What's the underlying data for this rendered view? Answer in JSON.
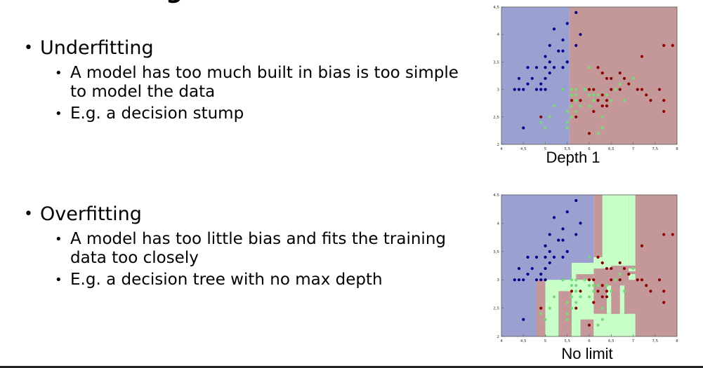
{
  "slide": {
    "title_fragment": "g",
    "bullets": [
      {
        "label": "Underfitting",
        "sub": [
          "A model has too much built in bias is too simple to model the data",
          "E.g. a decision stump"
        ]
      },
      {
        "label": "Overfitting",
        "sub": [
          "A model has too little bias and fits the training data too closely",
          "E.g. a decision tree with no max depth"
        ]
      }
    ]
  },
  "colors": {
    "class0_region": "#9ba0d0",
    "class1_region": "#c8ffc8",
    "class2_region": "#c49898",
    "class0_point": "#00008b",
    "class1_point": "#7bd97b",
    "class2_point": "#8b0000"
  },
  "chart_data": [
    {
      "type": "scatter",
      "title": "Depth 1",
      "xlim": [
        4,
        8
      ],
      "ylim": [
        2,
        4.5
      ],
      "x_ticks": [
        "4",
        "4,5",
        "5",
        "5,5",
        "6",
        "6,5",
        "7",
        "7,5",
        "8"
      ],
      "y_ticks": [
        "2",
        "2,5",
        "3",
        "3,5",
        "4",
        "4,5"
      ],
      "regions": [
        {
          "class": 0,
          "x": [
            4,
            5.55
          ],
          "y": [
            2,
            4.5
          ]
        },
        {
          "class": 2,
          "x": [
            5.55,
            8
          ],
          "y": [
            2,
            4.5
          ]
        }
      ],
      "series": [
        {
          "class": 0,
          "points": [
            [
              4.3,
              3.0
            ],
            [
              4.4,
              3.0
            ],
            [
              4.4,
              3.2
            ],
            [
              4.5,
              2.3
            ],
            [
              4.6,
              3.1
            ],
            [
              4.6,
              3.4
            ],
            [
              4.7,
              3.2
            ],
            [
              4.8,
              3.0
            ],
            [
              4.8,
              3.4
            ],
            [
              4.9,
              3.0
            ],
            [
              4.9,
              3.1
            ],
            [
              5.0,
              3.0
            ],
            [
              5.0,
              3.2
            ],
            [
              5.0,
              3.4
            ],
            [
              5.0,
              3.6
            ],
            [
              5.1,
              3.3
            ],
            [
              5.1,
              3.5
            ],
            [
              5.1,
              3.8
            ],
            [
              5.2,
              3.4
            ],
            [
              5.2,
              4.1
            ],
            [
              5.3,
              3.7
            ],
            [
              5.4,
              3.4
            ],
            [
              5.4,
              3.7
            ],
            [
              5.4,
              3.9
            ],
            [
              5.5,
              4.2
            ],
            [
              5.5,
              3.5
            ],
            [
              5.7,
              4.4
            ],
            [
              5.7,
              3.8
            ],
            [
              5.8,
              4.0
            ],
            [
              5.4,
              3.0
            ],
            [
              5.5,
              3.5
            ],
            [
              4.5,
              3.0
            ]
          ]
        },
        {
          "class": 1,
          "points": [
            [
              4.9,
              2.4
            ],
            [
              5.0,
              2.0
            ],
            [
              5.0,
              2.3
            ],
            [
              5.1,
              2.5
            ],
            [
              5.2,
              2.7
            ],
            [
              5.4,
              3.0
            ],
            [
              5.5,
              2.3
            ],
            [
              5.5,
              2.4
            ],
            [
              5.5,
              2.6
            ],
            [
              5.6,
              2.5
            ],
            [
              5.6,
              2.7
            ],
            [
              5.6,
              2.9
            ],
            [
              5.6,
              3.0
            ],
            [
              5.7,
              2.6
            ],
            [
              5.7,
              2.8
            ],
            [
              5.7,
              2.9
            ],
            [
              5.7,
              3.0
            ],
            [
              5.8,
              2.7
            ],
            [
              5.9,
              3.0
            ],
            [
              6.0,
              2.2
            ],
            [
              6.0,
              2.7
            ],
            [
              6.0,
              2.9
            ],
            [
              6.0,
              3.4
            ],
            [
              6.1,
              2.8
            ],
            [
              6.1,
              3.0
            ],
            [
              6.2,
              2.2
            ],
            [
              6.2,
              2.9
            ],
            [
              6.3,
              2.3
            ],
            [
              6.3,
              3.3
            ],
            [
              6.4,
              2.9
            ],
            [
              6.5,
              2.8
            ],
            [
              6.6,
              3.0
            ],
            [
              6.7,
              3.0
            ],
            [
              6.7,
              3.1
            ],
            [
              6.8,
              2.8
            ],
            [
              6.9,
              3.1
            ],
            [
              7.0,
              3.2
            ],
            [
              5.8,
              2.8
            ],
            [
              6.1,
              2.9
            ],
            [
              6.3,
              2.5
            ]
          ]
        },
        {
          "class": 2,
          "points": [
            [
              4.9,
              2.5
            ],
            [
              5.6,
              2.8
            ],
            [
              5.7,
              2.5
            ],
            [
              5.8,
              2.8
            ],
            [
              6.0,
              2.2
            ],
            [
              6.1,
              3.0
            ],
            [
              6.2,
              2.8
            ],
            [
              6.3,
              2.9
            ],
            [
              6.3,
              3.3
            ],
            [
              6.3,
              2.7
            ],
            [
              6.4,
              2.8
            ],
            [
              6.4,
              3.2
            ],
            [
              6.5,
              3.0
            ],
            [
              6.5,
              3.2
            ],
            [
              6.7,
              3.3
            ],
            [
              6.7,
              3.0
            ],
            [
              6.8,
              3.2
            ],
            [
              6.9,
              3.1
            ],
            [
              7.1,
              3.0
            ],
            [
              7.2,
              3.6
            ],
            [
              7.2,
              3.0
            ],
            [
              7.3,
              2.9
            ],
            [
              7.4,
              2.8
            ],
            [
              7.6,
              3.0
            ],
            [
              7.7,
              3.8
            ],
            [
              7.7,
              2.6
            ],
            [
              7.7,
              2.8
            ],
            [
              7.9,
              3.8
            ],
            [
              6.1,
              2.6
            ],
            [
              6.4,
              2.7
            ],
            [
              6.0,
              3.0
            ],
            [
              6.2,
              3.4
            ]
          ]
        }
      ]
    },
    {
      "type": "scatter",
      "title": "No limit",
      "xlim": [
        4,
        8
      ],
      "ylim": [
        2,
        4.5
      ],
      "x_ticks": [
        "4",
        "4,5",
        "5",
        "5,5",
        "6",
        "6,5",
        "7",
        "7,5",
        "8"
      ],
      "y_ticks": [
        "2",
        "2,5",
        "3",
        "3,5",
        "4",
        "4,5"
      ],
      "regions": [
        {
          "class": 0,
          "x": [
            4,
            5.6
          ],
          "y": [
            2,
            4.5
          ]
        },
        {
          "class": 0,
          "x": [
            5.6,
            6.1
          ],
          "y": [
            3.3,
            4.5
          ]
        },
        {
          "class": 2,
          "x": [
            6.1,
            8
          ],
          "y": [
            2,
            4.5
          ]
        },
        {
          "class": 2,
          "x": [
            4.8,
            5.0
          ],
          "y": [
            2,
            3.0
          ]
        },
        {
          "class": 1,
          "x": [
            5.0,
            5.6
          ],
          "y": [
            2,
            3.0
          ]
        },
        {
          "class": 1,
          "x": [
            5.6,
            6.1
          ],
          "y": [
            2,
            3.3
          ]
        },
        {
          "class": 1,
          "x": [
            6.3,
            6.9
          ],
          "y": [
            3.2,
            4.5
          ]
        },
        {
          "class": 1,
          "x": [
            6.9,
            7.05
          ],
          "y": [
            3.0,
            4.5
          ]
        },
        {
          "class": 1,
          "x": [
            6.1,
            6.3
          ],
          "y": [
            3.2,
            3.4
          ]
        },
        {
          "class": 1,
          "x": [
            6.1,
            7.05
          ],
          "y": [
            2,
            2.4
          ]
        },
        {
          "class": 2,
          "x": [
            5.3,
            5.6
          ],
          "y": [
            2,
            2.8
          ]
        },
        {
          "class": 2,
          "x": [
            5.8,
            6.1
          ],
          "y": [
            2,
            2.3
          ]
        },
        {
          "class": 2,
          "x": [
            6.3,
            6.9
          ],
          "y": [
            2.4,
            2.9
          ]
        },
        {
          "class": 1,
          "x": [
            6.4,
            6.5
          ],
          "y": [
            2.4,
            2.9
          ]
        },
        {
          "class": 1,
          "x": [
            6.7,
            6.8
          ],
          "y": [
            2.4,
            2.9
          ]
        },
        {
          "class": 2,
          "x": [
            5.7,
            6.1
          ],
          "y": [
            3.0,
            3.1
          ]
        },
        {
          "class": 2,
          "x": [
            6.5,
            7.05
          ],
          "y": [
            3.1,
            3.15
          ]
        },
        {
          "class": 2,
          "x": [
            6.5,
            7.05
          ],
          "y": [
            3.2,
            3.25
          ]
        }
      ],
      "series": [
        {
          "class": 0,
          "points": [
            [
              4.3,
              3.0
            ],
            [
              4.4,
              3.0
            ],
            [
              4.4,
              3.2
            ],
            [
              4.5,
              2.3
            ],
            [
              4.6,
              3.1
            ],
            [
              4.6,
              3.4
            ],
            [
              4.7,
              3.2
            ],
            [
              4.8,
              3.0
            ],
            [
              4.8,
              3.4
            ],
            [
              4.9,
              3.0
            ],
            [
              4.9,
              3.1
            ],
            [
              5.0,
              3.0
            ],
            [
              5.0,
              3.2
            ],
            [
              5.0,
              3.4
            ],
            [
              5.0,
              3.6
            ],
            [
              5.1,
              3.3
            ],
            [
              5.1,
              3.5
            ],
            [
              5.1,
              3.8
            ],
            [
              5.2,
              3.4
            ],
            [
              5.2,
              4.1
            ],
            [
              5.3,
              3.7
            ],
            [
              5.4,
              3.4
            ],
            [
              5.4,
              3.7
            ],
            [
              5.4,
              3.9
            ],
            [
              5.5,
              4.2
            ],
            [
              5.5,
              3.5
            ],
            [
              5.7,
              4.4
            ],
            [
              5.7,
              3.8
            ],
            [
              5.8,
              4.0
            ],
            [
              5.4,
              3.0
            ],
            [
              5.5,
              3.5
            ],
            [
              4.5,
              3.0
            ]
          ]
        },
        {
          "class": 1,
          "points": [
            [
              4.9,
              2.4
            ],
            [
              5.0,
              2.0
            ],
            [
              5.0,
              2.3
            ],
            [
              5.1,
              2.5
            ],
            [
              5.2,
              2.7
            ],
            [
              5.4,
              3.0
            ],
            [
              5.5,
              2.3
            ],
            [
              5.5,
              2.4
            ],
            [
              5.5,
              2.6
            ],
            [
              5.6,
              2.5
            ],
            [
              5.6,
              2.7
            ],
            [
              5.6,
              2.9
            ],
            [
              5.6,
              3.0
            ],
            [
              5.7,
              2.6
            ],
            [
              5.7,
              2.8
            ],
            [
              5.7,
              2.9
            ],
            [
              5.7,
              3.0
            ],
            [
              5.8,
              2.7
            ],
            [
              5.9,
              3.0
            ],
            [
              6.0,
              2.2
            ],
            [
              6.0,
              2.7
            ],
            [
              6.0,
              2.9
            ],
            [
              6.0,
              3.4
            ],
            [
              6.1,
              2.8
            ],
            [
              6.1,
              3.0
            ],
            [
              6.2,
              2.2
            ],
            [
              6.2,
              2.9
            ],
            [
              6.3,
              2.3
            ],
            [
              6.3,
              3.3
            ],
            [
              6.4,
              2.9
            ],
            [
              6.5,
              2.8
            ],
            [
              6.6,
              3.0
            ],
            [
              6.7,
              3.0
            ],
            [
              6.7,
              3.1
            ],
            [
              6.8,
              2.8
            ],
            [
              6.9,
              3.1
            ],
            [
              7.0,
              3.2
            ],
            [
              5.8,
              2.8
            ],
            [
              6.1,
              2.9
            ],
            [
              6.3,
              2.5
            ]
          ]
        },
        {
          "class": 2,
          "points": [
            [
              4.9,
              2.5
            ],
            [
              5.6,
              2.8
            ],
            [
              5.7,
              2.5
            ],
            [
              5.8,
              2.8
            ],
            [
              6.0,
              2.2
            ],
            [
              6.1,
              3.0
            ],
            [
              6.2,
              2.8
            ],
            [
              6.3,
              2.9
            ],
            [
              6.3,
              3.3
            ],
            [
              6.3,
              2.7
            ],
            [
              6.4,
              2.8
            ],
            [
              6.4,
              3.2
            ],
            [
              6.5,
              3.0
            ],
            [
              6.5,
              3.2
            ],
            [
              6.7,
              3.3
            ],
            [
              6.7,
              3.0
            ],
            [
              6.8,
              3.2
            ],
            [
              6.9,
              3.1
            ],
            [
              7.1,
              3.0
            ],
            [
              7.2,
              3.6
            ],
            [
              7.2,
              3.0
            ],
            [
              7.3,
              2.9
            ],
            [
              7.4,
              2.8
            ],
            [
              7.6,
              3.0
            ],
            [
              7.7,
              3.8
            ],
            [
              7.7,
              2.6
            ],
            [
              7.7,
              2.8
            ],
            [
              7.9,
              3.8
            ],
            [
              6.1,
              2.6
            ],
            [
              6.4,
              2.7
            ],
            [
              6.0,
              3.0
            ],
            [
              6.2,
              3.4
            ]
          ]
        }
      ]
    }
  ]
}
